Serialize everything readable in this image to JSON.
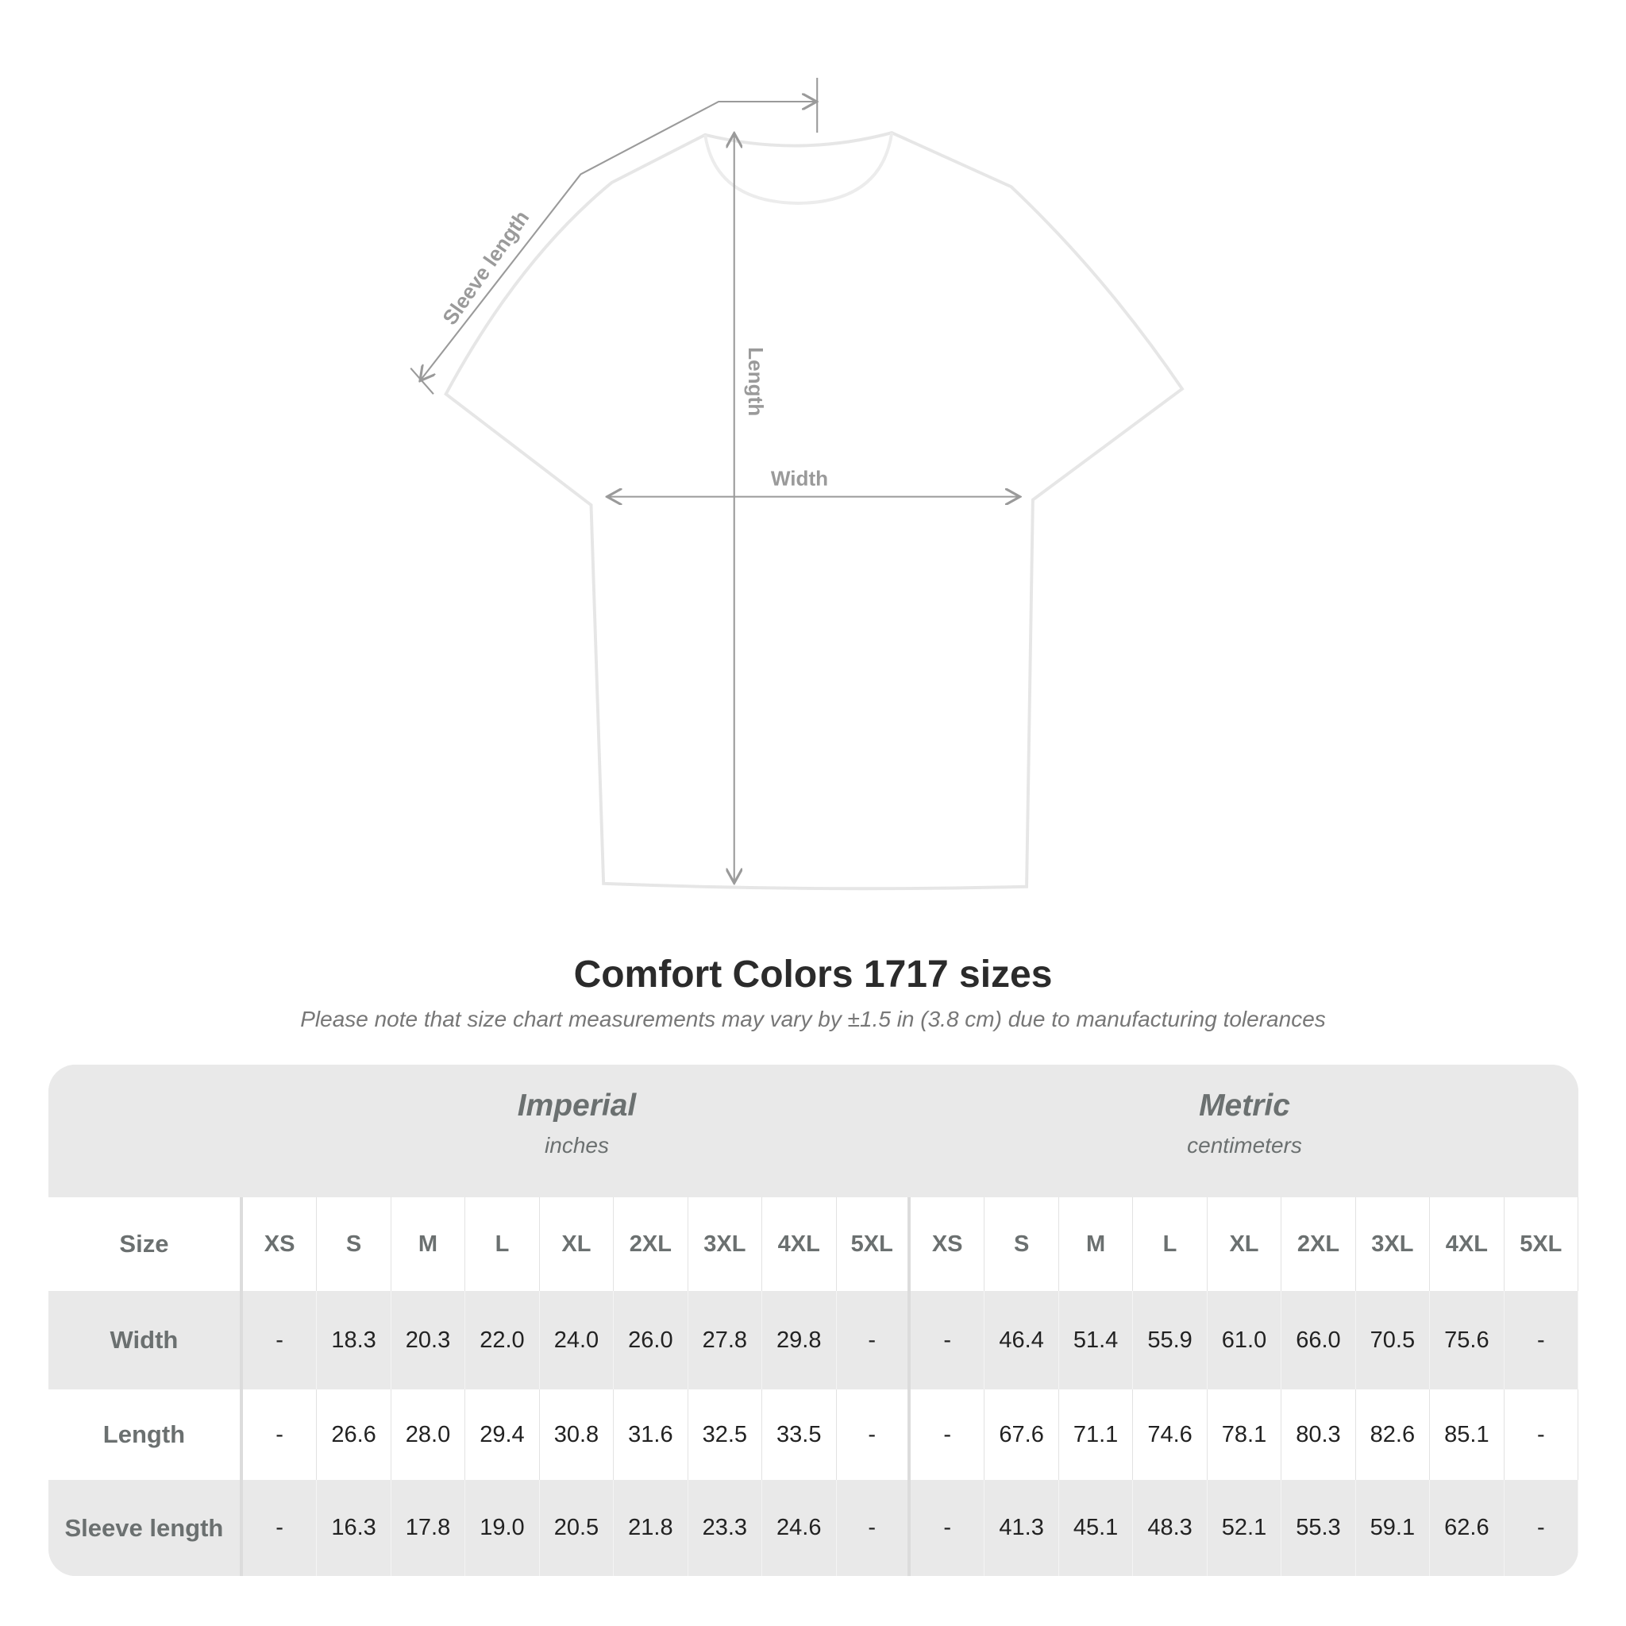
{
  "diagram": {
    "labels": {
      "sleeve": "Sleeve length",
      "length": "Length",
      "width": "Width"
    },
    "line_color": "#9a9a9a",
    "shirt_color": "#ffffff"
  },
  "title": "Comfort Colors 1717 sizes",
  "note": "Please note that size chart measurements may vary by ±1.5 in (3.8 cm) due to manufacturing tolerances",
  "table": {
    "imperial": {
      "title": "Imperial",
      "unit": "inches"
    },
    "metric": {
      "title": "Metric",
      "unit": "centimeters"
    },
    "size_label": "Size",
    "sizes": [
      "XS",
      "S",
      "M",
      "L",
      "XL",
      "2XL",
      "3XL",
      "4XL",
      "5XL"
    ],
    "rows": [
      {
        "label": "Width",
        "imperial": [
          "-",
          "18.3",
          "20.3",
          "22.0",
          "24.0",
          "26.0",
          "27.8",
          "29.8",
          "-"
        ],
        "metric": [
          "-",
          "46.4",
          "51.4",
          "55.9",
          "61.0",
          "66.0",
          "70.5",
          "75.6",
          "-"
        ]
      },
      {
        "label": "Length",
        "imperial": [
          "-",
          "26.6",
          "28.0",
          "29.4",
          "30.8",
          "31.6",
          "32.5",
          "33.5",
          "-"
        ],
        "metric": [
          "-",
          "67.6",
          "71.1",
          "74.6",
          "78.1",
          "80.3",
          "82.6",
          "85.1",
          "-"
        ]
      },
      {
        "label": "Sleeve length",
        "imperial": [
          "-",
          "16.3",
          "17.8",
          "19.0",
          "20.5",
          "21.8",
          "23.3",
          "24.6",
          "-"
        ],
        "metric": [
          "-",
          "41.3",
          "45.1",
          "48.3",
          "52.1",
          "55.3",
          "59.1",
          "62.6",
          "-"
        ]
      }
    ]
  }
}
